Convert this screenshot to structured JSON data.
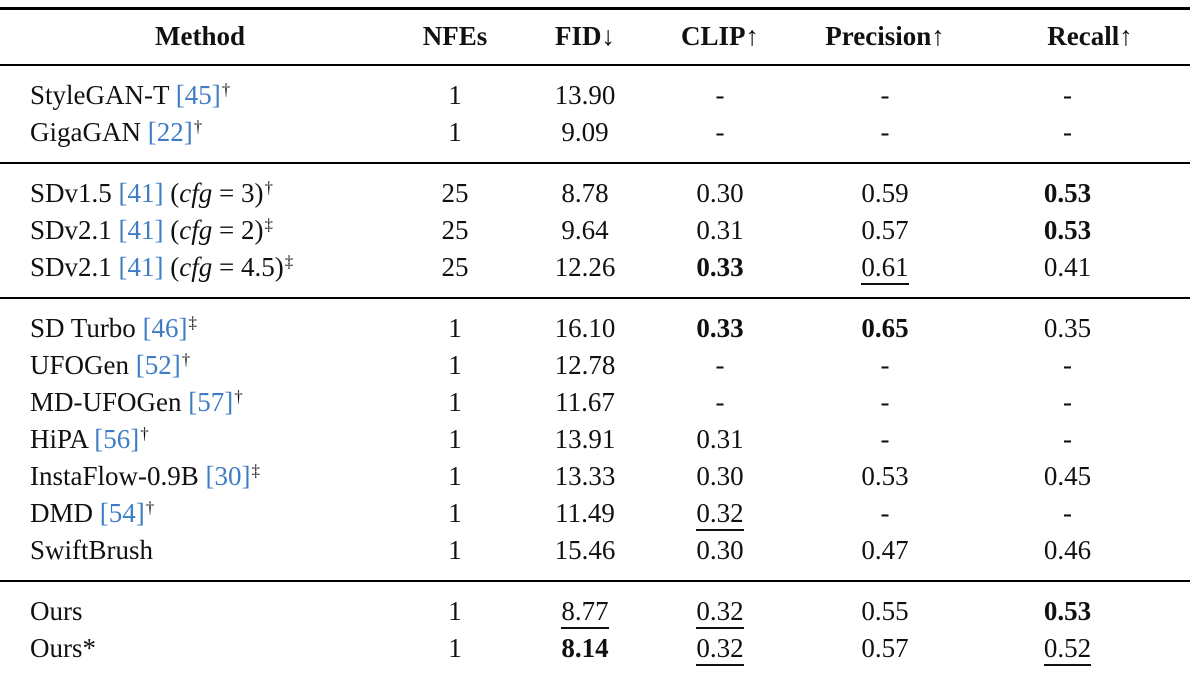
{
  "colors": {
    "citation": "#3E7DC6",
    "text": "#111111",
    "rule": "#000000"
  },
  "table": {
    "columns": [
      {
        "key": "method",
        "label": "Method"
      },
      {
        "key": "nfes",
        "label": "NFEs"
      },
      {
        "key": "fid",
        "label": "FID↓"
      },
      {
        "key": "clip",
        "label": "CLIP↑"
      },
      {
        "key": "precision",
        "label": "Precision↑"
      },
      {
        "key": "recall",
        "label": "Recall↑"
      }
    ],
    "groups": [
      {
        "rows": [
          {
            "method": [
              {
                "t": "StyleGAN-T "
              },
              {
                "t": "[45]",
                "s": "cite"
              },
              {
                "t": "†",
                "s": "sup"
              }
            ],
            "values": [
              {
                "v": "1"
              },
              {
                "v": "13.90"
              },
              {
                "v": "-"
              },
              {
                "v": "-"
              },
              {
                "v": "-"
              }
            ]
          },
          {
            "method": [
              {
                "t": "GigaGAN "
              },
              {
                "t": "[22]",
                "s": "cite"
              },
              {
                "t": "†",
                "s": "sup"
              }
            ],
            "values": [
              {
                "v": "1"
              },
              {
                "v": "9.09"
              },
              {
                "v": "-"
              },
              {
                "v": "-"
              },
              {
                "v": "-"
              }
            ]
          }
        ]
      },
      {
        "rows": [
          {
            "method": [
              {
                "t": "SDv1.5 "
              },
              {
                "t": "[41]",
                "s": "cite"
              },
              {
                "t": " ("
              },
              {
                "t": "cfg",
                "s": "i"
              },
              {
                "t": " = 3)"
              },
              {
                "t": "†",
                "s": "sup"
              }
            ],
            "values": [
              {
                "v": "25"
              },
              {
                "v": "8.78"
              },
              {
                "v": "0.30"
              },
              {
                "v": "0.59"
              },
              {
                "v": "0.53",
                "s": "b"
              }
            ]
          },
          {
            "method": [
              {
                "t": "SDv2.1 "
              },
              {
                "t": "[41]",
                "s": "cite"
              },
              {
                "t": " ("
              },
              {
                "t": "cfg",
                "s": "i"
              },
              {
                "t": " = 2)"
              },
              {
                "t": "‡",
                "s": "sup"
              }
            ],
            "values": [
              {
                "v": "25"
              },
              {
                "v": "9.64"
              },
              {
                "v": "0.31"
              },
              {
                "v": "0.57"
              },
              {
                "v": "0.53",
                "s": "b"
              }
            ]
          },
          {
            "method": [
              {
                "t": "SDv2.1 "
              },
              {
                "t": "[41]",
                "s": "cite"
              },
              {
                "t": " ("
              },
              {
                "t": "cfg",
                "s": "i"
              },
              {
                "t": " = 4.5)"
              },
              {
                "t": "‡",
                "s": "sup"
              }
            ],
            "values": [
              {
                "v": "25"
              },
              {
                "v": "12.26"
              },
              {
                "v": "0.33",
                "s": "b"
              },
              {
                "v": "0.61",
                "s": "u"
              },
              {
                "v": "0.41"
              }
            ]
          }
        ]
      },
      {
        "rows": [
          {
            "method": [
              {
                "t": "SD Turbo "
              },
              {
                "t": "[46]",
                "s": "cite"
              },
              {
                "t": "‡",
                "s": "sup"
              }
            ],
            "values": [
              {
                "v": "1"
              },
              {
                "v": "16.10"
              },
              {
                "v": "0.33",
                "s": "b"
              },
              {
                "v": "0.65",
                "s": "b"
              },
              {
                "v": "0.35"
              }
            ]
          },
          {
            "method": [
              {
                "t": "UFOGen "
              },
              {
                "t": "[52]",
                "s": "cite"
              },
              {
                "t": "†",
                "s": "sup"
              }
            ],
            "values": [
              {
                "v": "1"
              },
              {
                "v": "12.78"
              },
              {
                "v": "-"
              },
              {
                "v": "-"
              },
              {
                "v": "-"
              }
            ]
          },
          {
            "method": [
              {
                "t": "MD-UFOGen "
              },
              {
                "t": "[57]",
                "s": "cite"
              },
              {
                "t": "†",
                "s": "sup"
              }
            ],
            "values": [
              {
                "v": "1"
              },
              {
                "v": "11.67"
              },
              {
                "v": "-"
              },
              {
                "v": "-"
              },
              {
                "v": "-"
              }
            ]
          },
          {
            "method": [
              {
                "t": "HiPA "
              },
              {
                "t": "[56]",
                "s": "cite"
              },
              {
                "t": "†",
                "s": "sup"
              }
            ],
            "values": [
              {
                "v": "1"
              },
              {
                "v": "13.91"
              },
              {
                "v": "0.31"
              },
              {
                "v": "-"
              },
              {
                "v": "-"
              }
            ]
          },
          {
            "method": [
              {
                "t": "InstaFlow-0.9B "
              },
              {
                "t": "[30]",
                "s": "cite"
              },
              {
                "t": "‡",
                "s": "sup"
              }
            ],
            "values": [
              {
                "v": "1"
              },
              {
                "v": "13.33"
              },
              {
                "v": "0.30"
              },
              {
                "v": "0.53"
              },
              {
                "v": "0.45"
              }
            ]
          },
          {
            "method": [
              {
                "t": "DMD "
              },
              {
                "t": "[54]",
                "s": "cite"
              },
              {
                "t": "†",
                "s": "sup"
              }
            ],
            "values": [
              {
                "v": "1"
              },
              {
                "v": "11.49"
              },
              {
                "v": "0.32",
                "s": "u"
              },
              {
                "v": "-"
              },
              {
                "v": "-"
              }
            ]
          },
          {
            "method": [
              {
                "t": "SwiftBrush"
              }
            ],
            "values": [
              {
                "v": "1"
              },
              {
                "v": "15.46"
              },
              {
                "v": "0.30"
              },
              {
                "v": "0.47"
              },
              {
                "v": "0.46"
              }
            ]
          }
        ]
      },
      {
        "rows": [
          {
            "method": [
              {
                "t": "Ours"
              }
            ],
            "values": [
              {
                "v": "1"
              },
              {
                "v": "8.77",
                "s": "u"
              },
              {
                "v": "0.32",
                "s": "u"
              },
              {
                "v": "0.55"
              },
              {
                "v": "0.53",
                "s": "b"
              }
            ]
          },
          {
            "method": [
              {
                "t": "Ours*"
              }
            ],
            "values": [
              {
                "v": "1"
              },
              {
                "v": "8.14",
                "s": "b"
              },
              {
                "v": "0.32",
                "s": "u"
              },
              {
                "v": "0.57"
              },
              {
                "v": "0.52",
                "s": "u"
              }
            ]
          }
        ]
      }
    ]
  }
}
